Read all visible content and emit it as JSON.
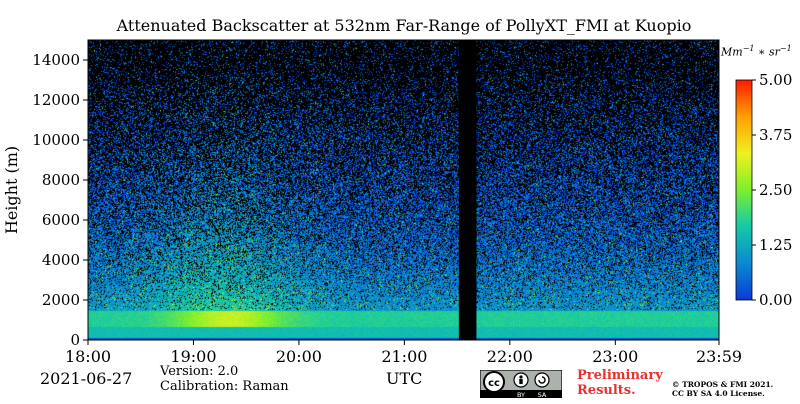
{
  "chart_data": {
    "type": "heatmap",
    "title": "Attenuated Backscatter at 532nm Far-Range of PollyXT_FMI at Kuopio",
    "ylabel": "Height (m)",
    "xlabel": "UTC",
    "x_ticks": [
      "18:00",
      "19:00",
      "20:00",
      "21:00",
      "22:00",
      "23:00",
      "23:59"
    ],
    "y_ticks": [
      0,
      2000,
      4000,
      6000,
      8000,
      10000,
      12000,
      14000
    ],
    "ylim": [
      0,
      15000
    ],
    "colorbar": {
      "ticks": [
        "0.00",
        "1.25",
        "2.50",
        "3.75",
        "5.00"
      ],
      "range": [
        0,
        5
      ],
      "unit": "Mm-1 * sr-1",
      "colors": [
        "#0a3ad8",
        "#0a8ad0",
        "#14c8a8",
        "#7cf02c",
        "#f0f020",
        "#ffa000",
        "#ff1a00"
      ]
    },
    "data_gap": {
      "start": "21:31",
      "end": "21:41",
      "color": "#000000"
    },
    "date": "2021-06-27",
    "version": "Version: 2.0",
    "calibration": "Calibration: Raman"
  },
  "footer": {
    "preliminary": "Preliminary",
    "results": "Results.",
    "copyright_1": "© TROPOS & FMI 2021.",
    "copyright_2": "CC BY SA 4.0 License.",
    "license_badge": {
      "cc": "cc",
      "by": "BY",
      "sa": "SA"
    }
  }
}
